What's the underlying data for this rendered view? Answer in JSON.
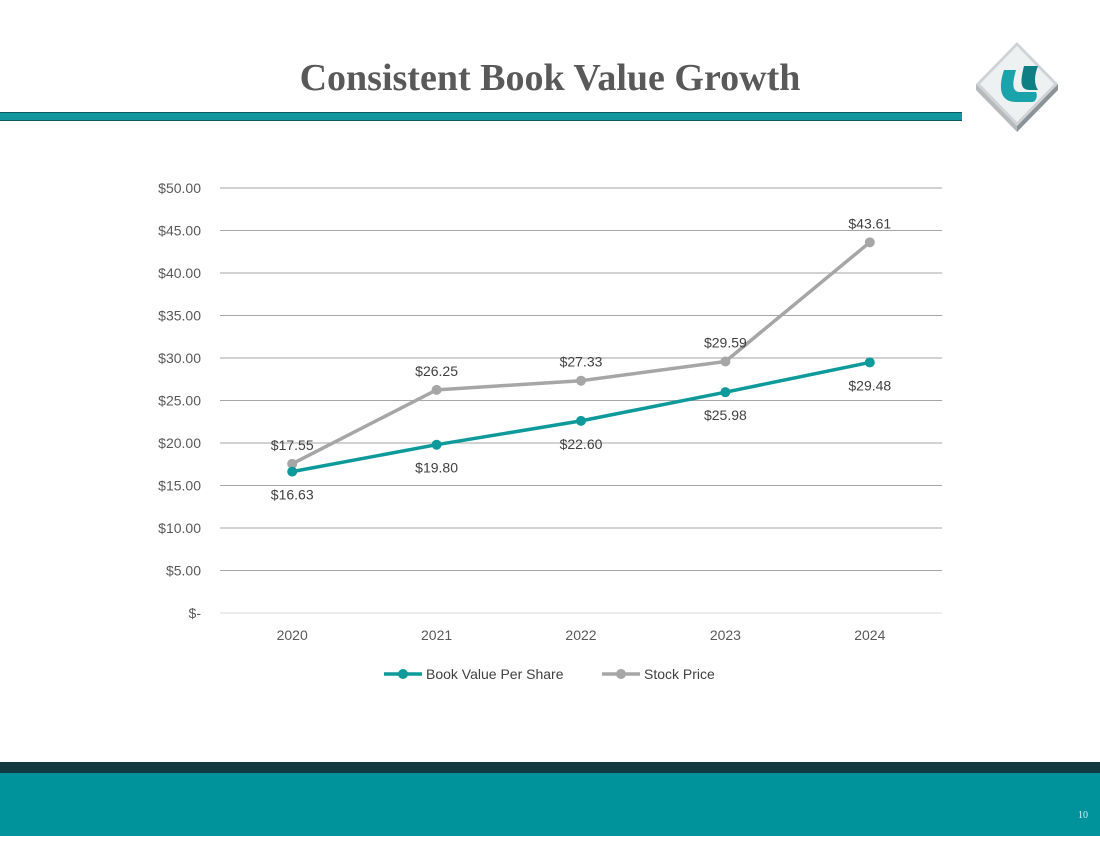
{
  "slide": {
    "title": "Consistent Book Value Growth",
    "page_number": "10"
  },
  "colors": {
    "accent": "#13979f",
    "footer": "#00939c",
    "footer_dark": "#123a40",
    "book_value": "#0e9a9b",
    "stock_price": "#a6a6a6"
  },
  "logo": {
    "icon": "company-logo-icon"
  },
  "chart_data": {
    "type": "line",
    "categories": [
      "2020",
      "2021",
      "2022",
      "2023",
      "2024"
    ],
    "ylim": [
      0,
      50
    ],
    "ytick_values": [
      0,
      5,
      10,
      15,
      20,
      25,
      30,
      35,
      40,
      45,
      50
    ],
    "ytick_labels": [
      "$-",
      "$5.00",
      "$10.00",
      "$15.00",
      "$20.00",
      "$25.00",
      "$30.00",
      "$35.00",
      "$40.00",
      "$45.00",
      "$50.00"
    ],
    "grid": true,
    "legend_position": "bottom",
    "series": [
      {
        "name": "Book Value Per Share",
        "values": [
          16.63,
          19.8,
          22.6,
          25.98,
          29.48
        ],
        "labels": [
          "$16.63",
          "$19.80",
          "$22.60",
          "$25.98",
          "$29.48"
        ],
        "label_position": "below"
      },
      {
        "name": "Stock Price",
        "values": [
          17.55,
          26.25,
          27.33,
          29.59,
          43.61
        ],
        "labels": [
          "$17.55",
          "$26.25",
          "$27.33",
          "$29.59",
          "$43.61"
        ],
        "label_position": "above"
      }
    ]
  }
}
